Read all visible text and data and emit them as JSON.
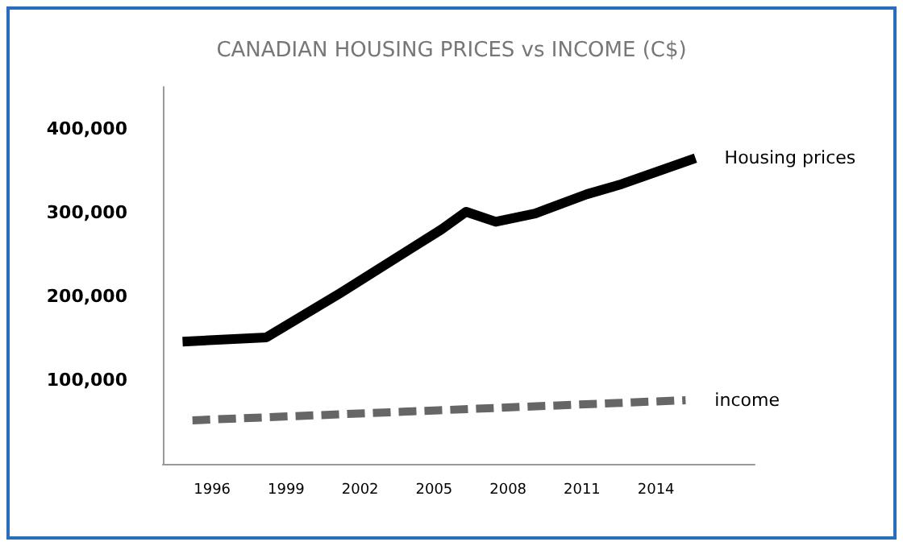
{
  "chart_data": {
    "type": "line",
    "title": "CANADIAN HOUSING PRICES vs INCOME (C$)",
    "series": [
      {
        "name": "Housing prices",
        "color": "#000000",
        "line_style": "solid",
        "x": [
          1994.8,
          1998.2,
          2001.2,
          2005.3,
          2006.3,
          2007.5,
          2009.1,
          2011.2,
          2012.6,
          2015.6
        ],
        "values": [
          146000,
          151000,
          204000,
          280000,
          301000,
          289000,
          299000,
          322000,
          334000,
          365000
        ]
      },
      {
        "name": "income",
        "color": "#666666",
        "line_style": "dashed",
        "x": [
          1995.2,
          2005.2,
          2015.2
        ],
        "values": [
          52000,
          64000,
          76000
        ]
      }
    ],
    "xlim": [
      1994,
      2018
    ],
    "xticks": [
      1996,
      1999,
      2002,
      2005,
      2008,
      2011,
      2014
    ],
    "ylim": [
      0,
      450000
    ],
    "yticks": [
      {
        "value": 100000,
        "label": "100,000"
      },
      {
        "value": 200000,
        "label": "200,000"
      },
      {
        "value": 300000,
        "label": "300,000"
      },
      {
        "value": 400000,
        "label": "400,000"
      }
    ],
    "grid": false,
    "legend": false,
    "marker": "none"
  }
}
